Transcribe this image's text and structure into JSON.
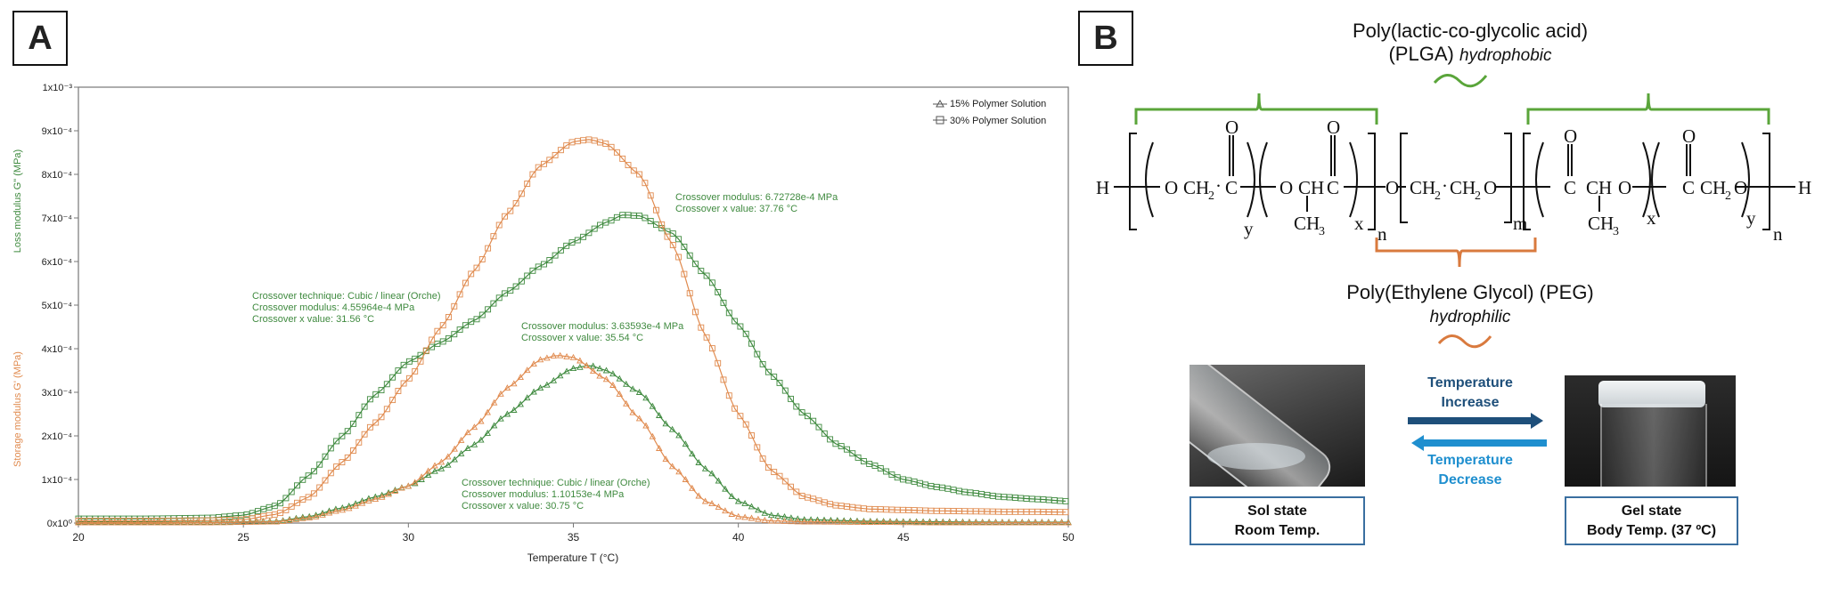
{
  "panels": {
    "a": "A",
    "b": "B"
  },
  "chart_data": {
    "type": "line",
    "xlabel": "Temperature T (°C)",
    "ylabel_loss": "Loss modulus G\" (MPa)",
    "ylabel_storage": "Storage modulus G' (MPa)",
    "xlim": [
      20,
      50
    ],
    "ylim": [
      0,
      0.001
    ],
    "x_ticks": [
      "20",
      "25",
      "30",
      "35",
      "40",
      "45",
      "50"
    ],
    "y_ticks": [
      "0x10⁰",
      "1x10⁻⁴",
      "2x10⁻⁴",
      "3x10⁻⁴",
      "4x10⁻⁴",
      "5x10⁻⁴",
      "6x10⁻⁴",
      "7x10⁻⁴",
      "8x10⁻⁴",
      "9x10⁻⁴",
      "1x10⁻³"
    ],
    "legend": {
      "position": "top-right",
      "entries": [
        "15% Polymer Solution",
        "30% Polymer Solution"
      ]
    },
    "grid": false,
    "series": [
      {
        "name": "30% Polymer Solution",
        "modulus": "loss",
        "marker": "square",
        "color": "#3f8a3f",
        "x": [
          20,
          22,
          24,
          25,
          26,
          27,
          28,
          29,
          30,
          31,
          32,
          33,
          34,
          35,
          36,
          36.5,
          37,
          38,
          39,
          40,
          41,
          42,
          43,
          44,
          45,
          46,
          47,
          48,
          49,
          50
        ],
        "y": [
          1e-05,
          1e-05,
          1.2e-05,
          1.8e-05,
          4e-05,
          0.00011,
          0.0002,
          0.000295,
          0.00037,
          0.000415,
          0.000465,
          0.00053,
          0.00059,
          0.000645,
          0.00069,
          0.000707,
          0.000705,
          0.000665,
          0.00057,
          0.000455,
          0.00034,
          0.00025,
          0.00018,
          0.000135,
          0.0001,
          8.3e-05,
          7e-05,
          6e-05,
          5.5e-05,
          5e-05
        ]
      },
      {
        "name": "30% Polymer Solution",
        "modulus": "storage",
        "marker": "square",
        "color": "#e08a4e",
        "x": [
          20,
          22,
          24,
          25,
          26,
          27,
          28,
          29,
          30,
          31,
          32,
          33,
          34,
          35,
          35.5,
          36,
          37,
          38,
          39,
          40,
          41,
          42,
          43,
          44,
          45,
          46,
          47,
          48,
          49,
          50
        ],
        "y": [
          5e-06,
          5e-06,
          6e-06,
          8e-06,
          2e-05,
          6e-05,
          0.00014,
          0.00023,
          0.00033,
          0.00045,
          0.00058,
          0.00071,
          0.00082,
          0.000875,
          0.00088,
          0.00087,
          0.0008,
          0.00064,
          0.00043,
          0.00025,
          0.00012,
          6e-05,
          4e-05,
          3.2e-05,
          3e-05,
          2.8e-05,
          2.7e-05,
          2.6e-05,
          2.6e-05,
          2.5e-05
        ]
      },
      {
        "name": "15% Polymer Solution",
        "modulus": "loss",
        "marker": "triangle",
        "color": "#3f8a3f",
        "x": [
          20,
          24,
          26,
          27,
          28,
          29,
          30,
          31,
          32,
          33,
          34,
          35,
          35.5,
          36,
          37,
          38,
          39,
          40,
          41,
          42,
          44,
          46,
          48,
          50
        ],
        "y": [
          2e-06,
          2e-06,
          4e-06,
          1.5e-05,
          3.5e-05,
          6e-05,
          8.5e-05,
          0.000125,
          0.00018,
          0.00025,
          0.00031,
          0.000355,
          0.000362,
          0.00035,
          0.0003,
          0.000215,
          0.000125,
          5e-05,
          1.8e-05,
          8e-06,
          4e-06,
          3e-06,
          2e-06,
          2e-06
        ]
      },
      {
        "name": "15% Polymer Solution",
        "modulus": "storage",
        "marker": "triangle",
        "color": "#e08a4e",
        "x": [
          20,
          24,
          26,
          27,
          28,
          29,
          30,
          31,
          32,
          33,
          34,
          34.5,
          35,
          36,
          37,
          38,
          39,
          40,
          41,
          42,
          44,
          46,
          48,
          50
        ],
        "y": [
          1e-06,
          1e-06,
          3e-06,
          1.2e-05,
          3e-05,
          5.5e-05,
          8.5e-05,
          0.00014,
          0.00022,
          0.00031,
          0.000375,
          0.000385,
          0.00038,
          0.00033,
          0.00024,
          0.00013,
          5e-05,
          1.5e-05,
          5e-06,
          3e-06,
          2e-06,
          1e-06,
          1e-06,
          1e-06
        ]
      }
    ],
    "annotations": [
      {
        "lines": [
          "Crossover modulus: 6.72728e-4 MPa",
          "Crossover x value: 37.76 °C"
        ]
      },
      {
        "lines": [
          "Crossover technique: Cubic / linear (Orche)",
          "Crossover modulus: 4.55964e-4 MPa",
          "Crossover x value: 31.56 °C"
        ]
      },
      {
        "lines": [
          "Crossover modulus: 3.63593e-4 MPa",
          "Crossover x value: 35.54 °C"
        ]
      },
      {
        "lines": [
          "Crossover technique: Cubic / linear (Orche)",
          "Crossover modulus: 1.10153e-4 MPa",
          "Crossover x value: 30.75 °C"
        ]
      }
    ]
  },
  "structure": {
    "plga_title": "Poly(lactic-co-glycolic acid)",
    "plga_abbr": "(PLGA)",
    "plga_property": "hydrophobic",
    "peg_title": "Poly(Ethylene Glycol) (PEG)",
    "peg_property": "hydrophilic",
    "chem": {
      "h_left": "H",
      "o1": "O",
      "ch2_1": "CH",
      "sub2": "2",
      "dot": "·",
      "c1": "C",
      "o_dbl1": "O",
      "y1": "y",
      "o2": "O",
      "ch": "CH",
      "c2": "C",
      "o_dbl2": "O",
      "ch3": "CH",
      "sub3": "3",
      "x1": "x",
      "n1": "n",
      "o_link": "O",
      "ch2_peg1": "CH",
      "ch2_peg2": "CH",
      "o_peg": "O",
      "m": "m",
      "c3": "C",
      "o_dbl3": "O",
      "ch_b": "CH",
      "o_b": "O",
      "ch3_b": "CH",
      "x2": "x",
      "c4": "C",
      "o_dbl4": "O",
      "ch2_b": "CH",
      "o_c": "O",
      "y2": "y",
      "n2": "n",
      "h_right": "H"
    },
    "colors": {
      "plga": "#5aa53a",
      "peg": "#d97a3e"
    }
  },
  "transition": {
    "increase_label": "Temperature\nIncrease",
    "decrease_label": "Temperature\nDecrease",
    "increase_color": "#1e4f7a",
    "decrease_color": "#1f8fcf",
    "sol_state": "Sol state",
    "sol_temp": "Room Temp.",
    "gel_state": "Gel state",
    "gel_temp": "Body Temp. (37 ºC)"
  }
}
